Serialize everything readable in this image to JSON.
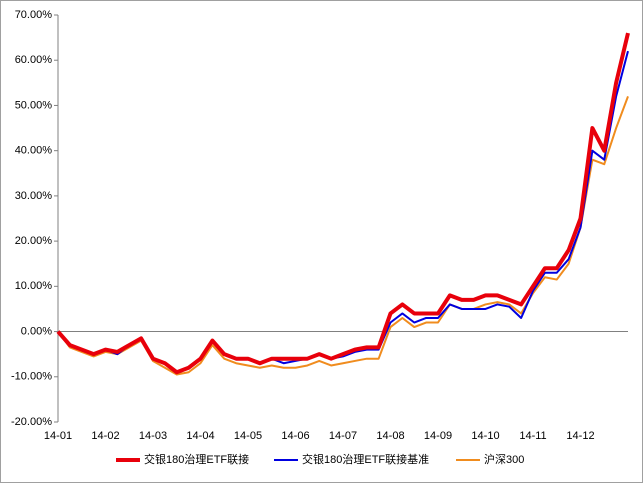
{
  "chart_data": {
    "type": "line",
    "categories": [
      "14-01",
      null,
      null,
      null,
      "14-02",
      null,
      null,
      null,
      "14-03",
      null,
      null,
      null,
      "14-04",
      null,
      null,
      null,
      "14-05",
      null,
      null,
      null,
      "14-06",
      null,
      null,
      null,
      "14-07",
      null,
      null,
      null,
      "14-08",
      null,
      null,
      null,
      "14-09",
      null,
      null,
      null,
      "14-10",
      null,
      null,
      null,
      "14-11",
      null,
      null,
      null,
      "14-12",
      null,
      null,
      null,
      null
    ],
    "series": [
      {
        "name": "交银180治理ETF联接",
        "color": "#e8000b",
        "values": [
          0,
          -3,
          -4,
          -5,
          -4,
          -4.5,
          -3,
          -1.5,
          -6,
          -7,
          -9,
          -8,
          -6,
          -2,
          -5,
          -6,
          -6,
          -7,
          -6,
          -6,
          -6,
          -6,
          -5,
          -6,
          -5,
          -4,
          -3.5,
          -3.5,
          4,
          6,
          4,
          4,
          4,
          8,
          7,
          7,
          8,
          8,
          7,
          6,
          10,
          14,
          14,
          18,
          25,
          45,
          40,
          55,
          66
        ]
      },
      {
        "name": "交银180治理ETF联接基准",
        "color": "#0000e0",
        "values": [
          0,
          -3,
          -4,
          -5,
          -4,
          -5,
          -3,
          -1.5,
          -6,
          -7,
          -9,
          -8,
          -6,
          -2,
          -5,
          -6,
          -6,
          -7,
          -6,
          -7,
          -6.5,
          -6,
          -5,
          -6,
          -5.5,
          -4.5,
          -4,
          -4,
          2,
          4,
          2,
          3,
          3,
          6,
          5,
          5,
          5,
          6,
          5.5,
          3,
          9,
          13,
          13,
          16,
          23,
          40,
          38,
          52,
          62
        ]
      },
      {
        "name": "沪深300",
        "color": "#f08c1e",
        "values": [
          0,
          -3.5,
          -4.5,
          -5.5,
          -4.5,
          -5,
          -3.5,
          -2,
          -6.5,
          -8,
          -9.5,
          -9,
          -7,
          -3,
          -6,
          -7,
          -7.5,
          -8,
          -7.5,
          -8,
          -8,
          -7.5,
          -6.5,
          -7.5,
          -7,
          -6.5,
          -6,
          -6,
          1,
          3,
          1,
          2,
          2,
          6,
          5,
          5,
          6,
          6.5,
          6,
          4,
          8.5,
          12,
          11.5,
          15,
          23,
          38,
          37,
          45,
          52
        ]
      }
    ],
    "ylim": [
      -20,
      70
    ],
    "yticks": [
      {
        "value": -20,
        "label": "-20.00%"
      },
      {
        "value": -10,
        "label": "-10.00%"
      },
      {
        "value": 0,
        "label": "0.00%"
      },
      {
        "value": 10,
        "label": "10.00%"
      },
      {
        "value": 20,
        "label": "20.00%"
      },
      {
        "value": 30,
        "label": "30.00%"
      },
      {
        "value": 40,
        "label": "40.00%"
      },
      {
        "value": 50,
        "label": "50.00%"
      },
      {
        "value": 60,
        "label": "60.00%"
      },
      {
        "value": 70,
        "label": "70.00%"
      }
    ],
    "grid": false
  }
}
